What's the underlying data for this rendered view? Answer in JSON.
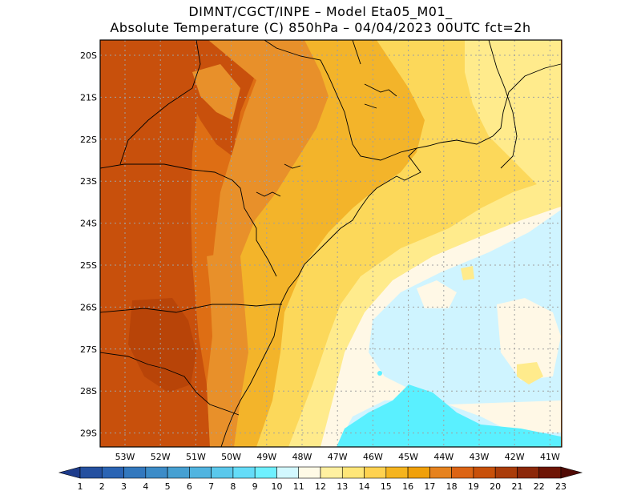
{
  "header": {
    "title_line1": "DIMNT/CGCT/INPE –  Model Eta05_M01_",
    "title_line2": "Absolute Temperature (C) 850hPa –  04/04/2023 00UTC fct=2h"
  },
  "map": {
    "lat_labels": [
      "20S",
      "21S",
      "22S",
      "23S",
      "24S",
      "25S",
      "26S",
      "27S",
      "28S",
      "29S"
    ],
    "lon_labels": [
      "53W",
      "52W",
      "51W",
      "50W",
      "49W",
      "48W",
      "47W",
      "46W",
      "45W",
      "44W",
      "43W",
      "42W",
      "41W"
    ],
    "grid": "dotted"
  },
  "colorbar": {
    "labels": [
      "1",
      "2",
      "3",
      "4",
      "5",
      "6",
      "7",
      "8",
      "9",
      "10",
      "11",
      "12",
      "13",
      "14",
      "15",
      "16",
      "17",
      "18",
      "19",
      "20",
      "21",
      "22",
      "23"
    ],
    "colors": [
      "#1e3c8c",
      "#2450a0",
      "#2a64b4",
      "#3278be",
      "#3c8cc8",
      "#46a0d2",
      "#50b4e0",
      "#5ac8ec",
      "#64dcf8",
      "#6ef0ff",
      "#d2f8ff",
      "#fffae6",
      "#fff0a0",
      "#ffe678",
      "#ffd250",
      "#f5b41e",
      "#f0a00a",
      "#e6821e",
      "#dc6414",
      "#c8500a",
      "#aa3c0a",
      "#8c280a",
      "#6e1405",
      "#500a05"
    ]
  },
  "palette": {
    "cyan": "#5af0ff",
    "lightcyan": "#cff4ff",
    "cream": "#fff8e6",
    "lightyellow": "#ffeb8c",
    "yellow": "#fcd85a",
    "gold": "#f3b42a",
    "orange": "#e8902a",
    "darkorange": "#de6e14",
    "rust": "#c8500c"
  }
}
